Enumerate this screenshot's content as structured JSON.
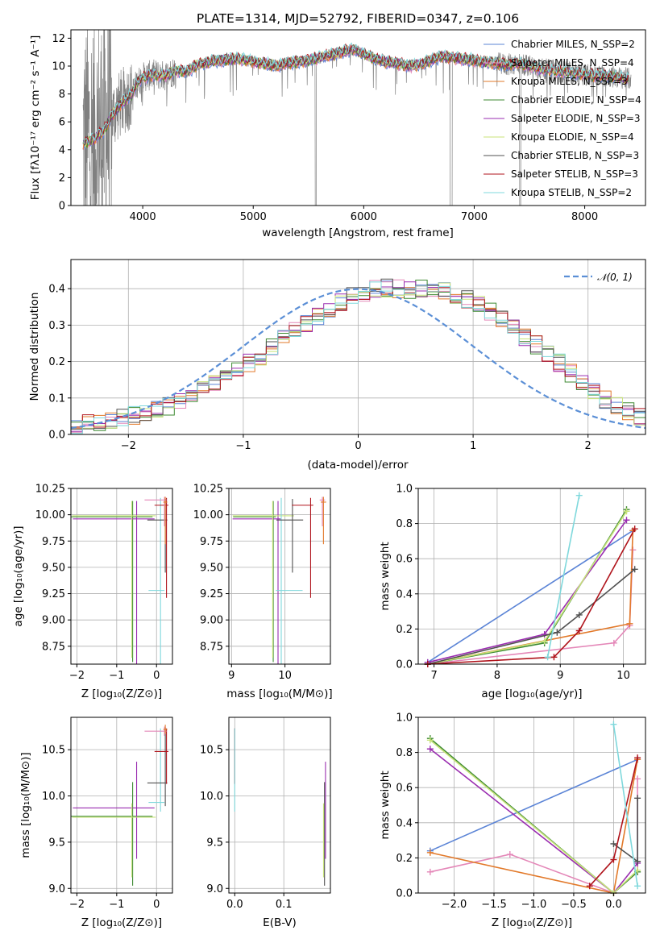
{
  "chart_data": [
    {
      "type": "line",
      "id": "spectrum",
      "title": "PLATE=1314, MJD=52792, FIBERID=0347, z=0.106",
      "xlabel": "wavelength [Angstrom, rest frame]",
      "ylabel": "Flux [fλ10⁻¹⁷ erg cm⁻² s⁻¹ A⁻¹]",
      "xlim": [
        3350,
        8550
      ],
      "ylim": [
        0,
        12.6
      ],
      "xticks": [
        4000,
        5000,
        6000,
        7000,
        8000
      ],
      "yticks": [
        0,
        2,
        4,
        6,
        8,
        10,
        12
      ],
      "grid": false,
      "legend_position": "top-right",
      "data_color": "#808080",
      "series": [
        {
          "name": "Chabrier MILES, N_SSP=2",
          "color": "#5b84d6"
        },
        {
          "name": "Salpeter MILES, N_SSP=4",
          "color": "#e487b8"
        },
        {
          "name": "Kroupa MILES, N_SSP=3",
          "color": "#e2792a"
        },
        {
          "name": "Chabrier ELODIE, N_SSP=4",
          "color": "#3e8a32"
        },
        {
          "name": "Salpeter ELODIE, N_SSP=3",
          "color": "#9a2db0"
        },
        {
          "name": "Kroupa ELODIE, N_SSP=4",
          "color": "#c8e37a"
        },
        {
          "name": "Chabrier STELIB, N_SSP=3",
          "color": "#505050"
        },
        {
          "name": "Salpeter STELIB, N_SSP=3",
          "color": "#b0141c"
        },
        {
          "name": "Kroupa STELIB, N_SSP=2",
          "color": "#7fd8dc"
        }
      ],
      "continuum": {
        "x": [
          3450,
          3550,
          3650,
          3700,
          3800,
          3900,
          3950,
          4000,
          4100,
          4200,
          4300,
          4400,
          4500,
          4600,
          4700,
          4800,
          4900,
          5000,
          5100,
          5200,
          5300,
          5400,
          5500,
          5600,
          5700,
          5800,
          5900,
          6000,
          6100,
          6200,
          6300,
          6400,
          6500,
          6600,
          6700,
          6800,
          6900,
          7000,
          7100,
          7200,
          7300,
          7400,
          7500,
          7600,
          7700,
          7800,
          7900,
          8000,
          8100,
          8200,
          8300,
          8400
        ],
        "y": [
          4.4,
          4.7,
          5.4,
          6.2,
          7.3,
          8.0,
          8.8,
          9.2,
          9.4,
          9.3,
          9.7,
          9.6,
          10.1,
          10.3,
          10.4,
          10.5,
          10.5,
          10.3,
          10.2,
          10.0,
          10.2,
          10.3,
          10.4,
          10.6,
          10.8,
          11.0,
          11.2,
          10.9,
          10.5,
          10.3,
          10.2,
          10.0,
          10.1,
          10.4,
          10.7,
          10.6,
          10.5,
          10.4,
          10.3,
          10.2,
          10.1,
          10.2,
          10.0,
          9.8,
          9.7,
          9.6,
          9.5,
          9.4,
          9.3,
          9.3,
          9.2,
          9.1
        ]
      }
    },
    {
      "type": "histogram",
      "id": "residuals",
      "xlabel": "(data-model)/error",
      "ylabel": "Normed distribution",
      "xlim": [
        -2.5,
        2.5
      ],
      "ylim": [
        0,
        0.48
      ],
      "xticks": [
        -2,
        -1,
        0,
        1,
        2
      ],
      "yticks": [
        0.0,
        0.1,
        0.2,
        0.3,
        0.4
      ],
      "grid": true,
      "legend_position": "top-right",
      "legend": [
        {
          "name": "𝒩(0, 1)",
          "color": "#5b8fd6",
          "style": "dashed"
        }
      ],
      "bins": {
        "start": -2.5,
        "width": 0.1,
        "count": 50
      },
      "base": [
        0.025,
        0.03,
        0.035,
        0.04,
        0.045,
        0.052,
        0.06,
        0.068,
        0.078,
        0.09,
        0.105,
        0.12,
        0.138,
        0.156,
        0.175,
        0.196,
        0.215,
        0.238,
        0.262,
        0.285,
        0.305,
        0.322,
        0.34,
        0.362,
        0.378,
        0.39,
        0.398,
        0.402,
        0.4,
        0.398,
        0.4,
        0.398,
        0.392,
        0.384,
        0.372,
        0.356,
        0.336,
        0.315,
        0.292,
        0.268,
        0.246,
        0.222,
        0.196,
        0.168,
        0.14,
        0.115,
        0.095,
        0.08,
        0.062,
        0.05
      ]
    },
    {
      "type": "errorbar",
      "id": "age_vs_Z",
      "xlabel": "Z [log₁₀(Z/Z⊙)]",
      "ylabel": "age  [log₁₀(age/yr)]",
      "xlim": [
        -2.15,
        0.4
      ],
      "ylim": [
        8.58,
        10.25
      ],
      "xticks": [
        -2,
        -1,
        0
      ],
      "yticks": [
        8.75,
        9.0,
        9.25,
        9.5,
        9.75,
        10.0,
        10.25
      ],
      "grid": true,
      "points": [
        {
          "x": -0.6,
          "y": 9.98,
          "xerr": [
            1.55,
            0.5
          ],
          "yerr": [
            1.38,
            0.15
          ],
          "color": "#3e8a32"
        },
        {
          "x": -0.5,
          "y": 9.96,
          "xerr": [
            1.6,
            0.45
          ],
          "yerr": [
            1.38,
            0.17
          ],
          "color": "#9a2db0"
        },
        {
          "x": -0.62,
          "y": 9.99,
          "xerr": [
            1.5,
            0.6
          ],
          "yerr": [
            1.35,
            0.14
          ],
          "color": "#c8e37a"
        },
        {
          "x": 0.1,
          "y": 9.28,
          "xerr": [
            0.3,
            0.1
          ],
          "yerr": [
            0.8,
            0.88
          ],
          "color": "#7fd8dc"
        },
        {
          "x": 0.22,
          "y": 9.95,
          "xerr": [
            0.45,
            0.05
          ],
          "yerr": [
            0.5,
            0.2
          ],
          "color": "#505050"
        },
        {
          "x": 0.25,
          "y": 10.09,
          "xerr": [
            0.3,
            0.05
          ],
          "yerr": [
            0.88,
            0.07
          ],
          "color": "#b0141c"
        },
        {
          "x": 0.2,
          "y": 10.14,
          "xerr": [
            0.5,
            0.05
          ],
          "yerr": [
            0.25,
            0.03
          ],
          "color": "#e487b8"
        },
        {
          "x": 0.22,
          "y": 10.12,
          "xerr": [
            0.05,
            0.05
          ],
          "yerr": [
            0.4,
            0.05
          ],
          "color": "#e2792a"
        }
      ]
    },
    {
      "type": "errorbar",
      "id": "age_vs_mass",
      "xlabel": "mass [log₁₀(M/M⊙)]",
      "ylabel": "",
      "xlim": [
        8.95,
        10.85
      ],
      "ylim": [
        8.58,
        10.25
      ],
      "xticks": [
        9,
        10
      ],
      "yticks": [
        8.75,
        9.0,
        9.25,
        9.5,
        9.75,
        10.0,
        10.25
      ],
      "grid": true,
      "points": [
        {
          "x": 9.78,
          "y": 9.98,
          "xerr": [
            0.75,
            0.05
          ],
          "yerr": [
            1.38,
            0.15
          ],
          "color": "#3e8a32"
        },
        {
          "x": 9.87,
          "y": 9.96,
          "xerr": [
            0.85,
            0.05
          ],
          "yerr": [
            1.38,
            0.17
          ],
          "color": "#9a2db0"
        },
        {
          "x": 9.77,
          "y": 9.99,
          "xerr": [
            0.75,
            0.4
          ],
          "yerr": [
            1.35,
            0.14
          ],
          "color": "#c8e37a"
        },
        {
          "x": 9.93,
          "y": 9.28,
          "xerr": [
            0.1,
            0.4
          ],
          "yerr": [
            0.8,
            0.88
          ],
          "color": "#7fd8dc"
        },
        {
          "x": 10.14,
          "y": 9.95,
          "xerr": [
            0.3,
            0.2
          ],
          "yerr": [
            0.5,
            0.2
          ],
          "color": "#505050"
        },
        {
          "x": 10.48,
          "y": 10.09,
          "xerr": [
            0.35,
            0.05
          ],
          "yerr": [
            0.88,
            0.07
          ],
          "color": "#b0141c"
        },
        {
          "x": 10.7,
          "y": 10.14,
          "xerr": [
            0.05,
            0.05
          ],
          "yerr": [
            0.25,
            0.03
          ],
          "color": "#e487b8"
        },
        {
          "x": 10.72,
          "y": 10.12,
          "xerr": [
            0.05,
            0.05
          ],
          "yerr": [
            0.4,
            0.05
          ],
          "color": "#e2792a"
        }
      ]
    },
    {
      "type": "line",
      "id": "weight_vs_age",
      "xlabel": "age  [log₁₀(age/yr)]",
      "ylabel": "mass weight",
      "xlim": [
        6.75,
        10.35
      ],
      "ylim": [
        0,
        1
      ],
      "xticks": [
        7,
        8,
        9,
        10
      ],
      "yticks": [
        0.0,
        0.2,
        0.4,
        0.6,
        0.8,
        1.0
      ],
      "grid": true,
      "series": [
        {
          "color": "#5b84d6",
          "x": [
            6.9,
            10.15
          ],
          "y": [
            0.01,
            0.76
          ]
        },
        {
          "color": "#e487b8",
          "x": [
            6.9,
            9.85,
            10.1,
            10.15
          ],
          "y": [
            0.0,
            0.12,
            0.22,
            0.65
          ]
        },
        {
          "color": "#e2792a",
          "x": [
            6.9,
            10.1,
            10.15
          ],
          "y": [
            0.0,
            0.23,
            0.76
          ]
        },
        {
          "color": "#3e8a32",
          "x": [
            6.9,
            8.75,
            10.05
          ],
          "y": [
            0.0,
            0.12,
            0.88
          ]
        },
        {
          "color": "#9a2db0",
          "x": [
            6.9,
            8.75,
            10.05
          ],
          "y": [
            0.01,
            0.17,
            0.82
          ]
        },
        {
          "color": "#c8e37a",
          "x": [
            6.9,
            8.75,
            10.05
          ],
          "y": [
            0.0,
            0.13,
            0.87
          ]
        },
        {
          "color": "#505050",
          "x": [
            6.9,
            8.95,
            9.3,
            10.18
          ],
          "y": [
            0.0,
            0.18,
            0.28,
            0.54
          ]
        },
        {
          "color": "#b0141c",
          "x": [
            6.9,
            8.9,
            9.3,
            10.18
          ],
          "y": [
            0.0,
            0.04,
            0.19,
            0.77
          ]
        },
        {
          "color": "#7fd8dc",
          "x": [
            8.8,
            9.3
          ],
          "y": [
            0.04,
            0.96
          ]
        }
      ]
    },
    {
      "type": "errorbar",
      "id": "mass_vs_Z",
      "xlabel": "Z [log₁₀(Z/Z⊙)]",
      "ylabel": "mass [log₁₀(M/M⊙)]",
      "xlim": [
        -2.15,
        0.4
      ],
      "ylim": [
        8.95,
        10.85
      ],
      "xticks": [
        -2,
        -1,
        0
      ],
      "yticks": [
        9.0,
        9.5,
        10.0,
        10.5
      ],
      "grid": true,
      "points": [
        {
          "x": -0.6,
          "y": 9.78,
          "xerr": [
            1.55,
            0.5
          ],
          "yerr": [
            0.75,
            0.37
          ],
          "color": "#3e8a32"
        },
        {
          "x": -0.5,
          "y": 9.87,
          "xerr": [
            1.6,
            0.45
          ],
          "yerr": [
            0.55,
            0.5
          ],
          "color": "#9a2db0"
        },
        {
          "x": -0.62,
          "y": 9.77,
          "xerr": [
            1.5,
            0.6
          ],
          "yerr": [
            0.65,
            0.15
          ],
          "color": "#c8e37a"
        },
        {
          "x": 0.1,
          "y": 9.93,
          "xerr": [
            0.3,
            0.1
          ],
          "yerr": [
            0.1,
            0.8
          ],
          "color": "#7fd8dc"
        },
        {
          "x": 0.22,
          "y": 10.14,
          "xerr": [
            0.45,
            0.05
          ],
          "yerr": [
            0.25,
            0.6
          ],
          "color": "#505050"
        },
        {
          "x": 0.25,
          "y": 10.48,
          "xerr": [
            0.3,
            0.05
          ],
          "yerr": [
            0.35,
            0.25
          ],
          "color": "#b0141c"
        },
        {
          "x": 0.2,
          "y": 10.7,
          "xerr": [
            0.5,
            0.05
          ],
          "yerr": [
            0.05,
            0.05
          ],
          "color": "#e487b8"
        },
        {
          "x": 0.22,
          "y": 10.72,
          "xerr": [
            0.05,
            0.05
          ],
          "yerr": [
            0.05,
            0.05
          ],
          "color": "#e2792a"
        }
      ]
    },
    {
      "type": "errorbar",
      "id": "mass_vs_EBV",
      "xlabel": "E(B-V)",
      "ylabel": "",
      "xlim": [
        -0.012,
        0.195
      ],
      "ylim": [
        8.95,
        10.85
      ],
      "xticks": [
        0.0,
        0.1
      ],
      "yticks": [
        9.0,
        9.5,
        10.0,
        10.5
      ],
      "grid": true,
      "points": [
        {
          "x": 0.0,
          "y": 10.48,
          "xerr": [
            0,
            0
          ],
          "yerr": [
            0.35,
            0.25
          ],
          "color": "#b0141c"
        },
        {
          "x": 0.0,
          "y": 9.93,
          "xerr": [
            0,
            0
          ],
          "yerr": [
            0.1,
            0.8
          ],
          "color": "#7fd8dc"
        },
        {
          "x": 0.183,
          "y": 9.78,
          "xerr": [
            0,
            0
          ],
          "yerr": [
            0.75,
            0.37
          ],
          "color": "#505050"
        },
        {
          "x": 0.185,
          "y": 9.87,
          "xerr": [
            0,
            0
          ],
          "yerr": [
            0.55,
            0.5
          ],
          "color": "#9a2db0"
        },
        {
          "x": 0.181,
          "y": 9.77,
          "xerr": [
            0,
            0
          ],
          "yerr": [
            0.65,
            0.15
          ],
          "color": "#c8e37a"
        }
      ]
    },
    {
      "type": "line",
      "id": "weight_vs_Z",
      "xlabel": "Z [log₁₀(Z/Z⊙)]",
      "ylabel": "mass weight",
      "xlim": [
        -2.45,
        0.4
      ],
      "ylim": [
        0,
        1
      ],
      "xticks": [
        -2.0,
        -1.5,
        -1.0,
        -0.5,
        0.0
      ],
      "yticks": [
        0.0,
        0.2,
        0.4,
        0.6,
        0.8,
        1.0
      ],
      "grid": true,
      "series": [
        {
          "color": "#5b84d6",
          "x": [
            -2.3,
            0.3
          ],
          "y": [
            0.24,
            0.76
          ]
        },
        {
          "color": "#e487b8",
          "x": [
            -2.3,
            -1.3,
            0.0,
            0.3,
            0.3
          ],
          "y": [
            0.12,
            0.22,
            0.0,
            0.12,
            0.65
          ]
        },
        {
          "color": "#e2792a",
          "x": [
            -2.3,
            0.0,
            0.3
          ],
          "y": [
            0.23,
            0.0,
            0.76
          ]
        },
        {
          "color": "#3e8a32",
          "x": [
            -2.3,
            0.0,
            0.3
          ],
          "y": [
            0.88,
            0.0,
            0.12
          ]
        },
        {
          "color": "#9a2db0",
          "x": [
            -2.3,
            0.0,
            0.3
          ],
          "y": [
            0.82,
            0.0,
            0.17
          ]
        },
        {
          "color": "#c8e37a",
          "x": [
            -2.3,
            0.0,
            0.3
          ],
          "y": [
            0.87,
            0.0,
            0.13
          ]
        },
        {
          "color": "#505050",
          "x": [
            0.0,
            0.3,
            0.3
          ],
          "y": [
            0.28,
            0.18,
            0.54
          ]
        },
        {
          "color": "#b0141c",
          "x": [
            -0.3,
            0.0,
            0.3
          ],
          "y": [
            0.04,
            0.19,
            0.77
          ]
        },
        {
          "color": "#7fd8dc",
          "x": [
            0.0,
            0.3
          ],
          "y": [
            0.96,
            0.04
          ]
        }
      ]
    }
  ]
}
